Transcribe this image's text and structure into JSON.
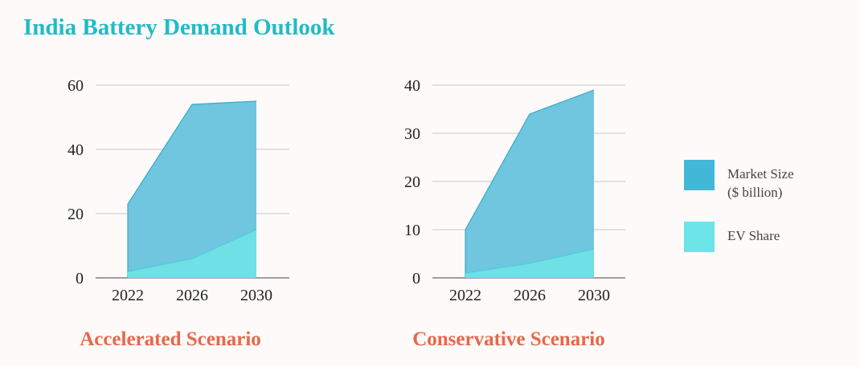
{
  "page": {
    "title": "India Battery Demand Outlook"
  },
  "colors": {
    "title": "#1fbcc6",
    "subtitle": "#e8674a",
    "market_fill": "#6fc6de",
    "market_stroke": "#3aa9c6",
    "ev_fill": "#6ee0e6",
    "ev_stroke": "#49cdd6",
    "legend_market": "#42b8d8",
    "legend_ev": "#6ce4e8",
    "grid": "#c8c8c8",
    "axis": "#444444"
  },
  "legend": {
    "items": [
      {
        "label_line1": "Market Size",
        "label_line2": "($ billion)",
        "color": "#42b8d8"
      },
      {
        "label_line1": "EV Share",
        "label_line2": "",
        "color": "#6ce4e8"
      }
    ]
  },
  "chart_data": [
    {
      "type": "area",
      "title": "Accelerated Scenario",
      "categories": [
        "2022",
        "2026",
        "2030"
      ],
      "series": [
        {
          "name": "Market Size ($ billion)",
          "values": [
            23,
            54,
            55
          ]
        },
        {
          "name": "EV Share",
          "values": [
            2,
            6,
            15
          ]
        }
      ],
      "ylim": [
        0,
        60
      ],
      "yticks": [
        0,
        20,
        40,
        60
      ],
      "grid": true,
      "legend": "right"
    },
    {
      "type": "area",
      "title": "Conservative Scenario",
      "categories": [
        "2022",
        "2026",
        "2030"
      ],
      "series": [
        {
          "name": "Market Size ($ billion)",
          "values": [
            10,
            34,
            39
          ]
        },
        {
          "name": "EV Share",
          "values": [
            1,
            3,
            6
          ]
        }
      ],
      "ylim": [
        0,
        40
      ],
      "yticks": [
        0,
        10,
        20,
        30,
        40
      ],
      "grid": true,
      "legend": "right"
    }
  ]
}
